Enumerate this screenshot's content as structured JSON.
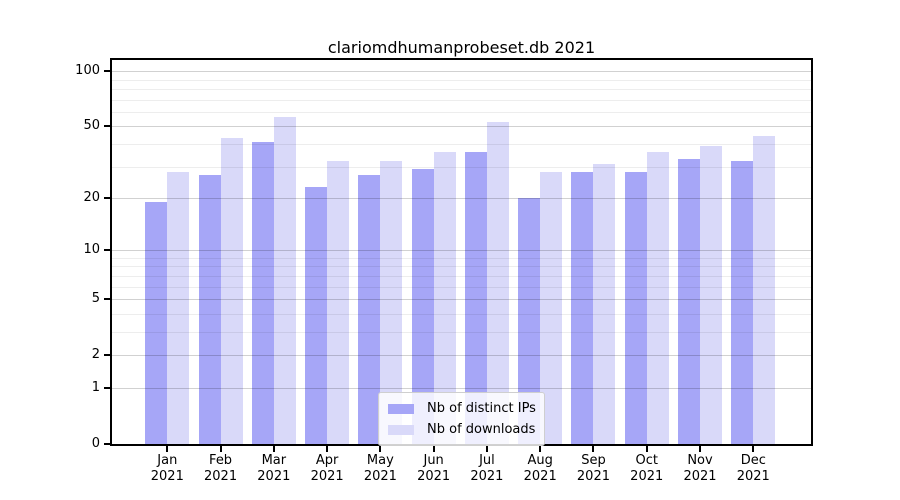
{
  "chart_data": {
    "type": "bar",
    "title": "clariomdhumanprobeset.db 2021",
    "year": "2021",
    "categories": [
      "Jan",
      "Feb",
      "Mar",
      "Apr",
      "May",
      "Jun",
      "Jul",
      "Aug",
      "Sep",
      "Oct",
      "Nov",
      "Dec"
    ],
    "series": [
      {
        "name": "Nb of distinct IPs",
        "color": "#a6a6f7",
        "values": [
          19,
          27,
          41,
          23,
          27,
          29,
          36,
          20,
          28,
          28,
          33,
          32
        ]
      },
      {
        "name": "Nb of downloads",
        "color": "#d9d9f9",
        "values": [
          28,
          43,
          56,
          32,
          32,
          36,
          53,
          28,
          31,
          36,
          39,
          44
        ]
      }
    ],
    "y_axis": {
      "scale": "log1p",
      "ticks": [
        0,
        1,
        2,
        5,
        10,
        20,
        50,
        100
      ],
      "minor_ticks": [
        3,
        4,
        6,
        7,
        8,
        9,
        30,
        40,
        60,
        70,
        80,
        90
      ],
      "range": [
        0,
        113
      ]
    },
    "x_axis": {
      "tick_label_lines": 2
    },
    "legend": {
      "position": "bottom-center"
    },
    "grid": true
  }
}
